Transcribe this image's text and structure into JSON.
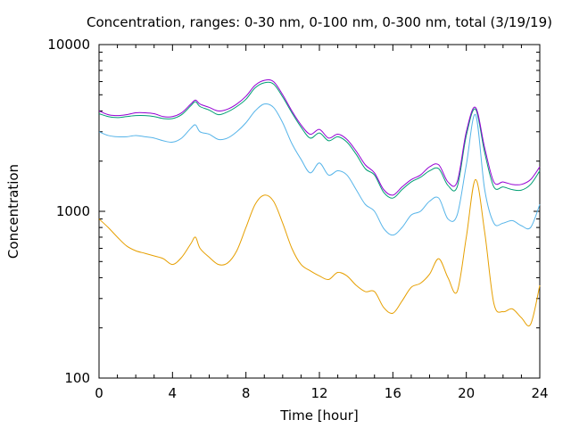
{
  "chart_data": {
    "type": "line",
    "title": "Concentration, ranges: 0-30 nm, 0-100 nm, 0-300 nm, total (3/19/19)",
    "xlabel": "Time [hour]",
    "ylabel": "Concentration",
    "xlim": [
      0,
      24
    ],
    "ylim": [
      100,
      10000
    ],
    "yscale": "log",
    "xticks": [
      0,
      4,
      8,
      12,
      16,
      20,
      24
    ],
    "xtick_labels": [
      "0",
      "4",
      "8",
      "12",
      "16",
      "20",
      "24"
    ],
    "yticks": [
      100,
      1000,
      10000
    ],
    "ytick_labels": [
      "100",
      "1000",
      "10000"
    ],
    "grid": false,
    "legend": "none",
    "x": [
      0,
      0.5,
      1,
      1.5,
      2,
      2.5,
      3,
      3.5,
      4,
      4.5,
      5,
      5.25,
      5.5,
      6,
      6.5,
      7,
      7.5,
      8,
      8.5,
      9,
      9.5,
      10,
      10.5,
      11,
      11.5,
      12,
      12.5,
      13,
      13.5,
      14,
      14.5,
      15,
      15.5,
      16,
      16.5,
      17,
      17.5,
      18,
      18.5,
      19,
      19.5,
      20,
      20.5,
      21,
      21.5,
      22,
      22.5,
      23,
      23.5,
      24
    ],
    "series": [
      {
        "color": "#9400d3",
        "values": [
          4000,
          3800,
          3750,
          3800,
          3900,
          3900,
          3850,
          3700,
          3700,
          3900,
          4400,
          4650,
          4400,
          4200,
          4000,
          4100,
          4400,
          4900,
          5700,
          6100,
          6000,
          5000,
          4000,
          3300,
          2900,
          3100,
          2750,
          2900,
          2700,
          2300,
          1900,
          1700,
          1350,
          1250,
          1400,
          1550,
          1650,
          1850,
          1900,
          1500,
          1500,
          3000,
          4200,
          2400,
          1500,
          1500,
          1450,
          1450,
          1550,
          1850
        ]
      },
      {
        "color": "#009e73",
        "values": [
          3850,
          3700,
          3650,
          3700,
          3750,
          3750,
          3700,
          3600,
          3600,
          3800,
          4300,
          4550,
          4250,
          4050,
          3800,
          3950,
          4250,
          4700,
          5500,
          5900,
          5800,
          4850,
          3900,
          3200,
          2750,
          2950,
          2650,
          2800,
          2600,
          2200,
          1800,
          1650,
          1300,
          1200,
          1350,
          1500,
          1600,
          1750,
          1800,
          1430,
          1400,
          2850,
          4100,
          2250,
          1400,
          1400,
          1350,
          1340,
          1450,
          1750
        ]
      },
      {
        "color": "#56b4e9",
        "values": [
          3000,
          2850,
          2800,
          2800,
          2850,
          2800,
          2750,
          2650,
          2600,
          2750,
          3150,
          3300,
          3000,
          2900,
          2700,
          2750,
          3000,
          3400,
          4000,
          4400,
          4200,
          3400,
          2550,
          2050,
          1700,
          1950,
          1650,
          1750,
          1650,
          1350,
          1100,
          1000,
          790,
          720,
          800,
          950,
          1000,
          1150,
          1200,
          900,
          950,
          1900,
          3800,
          1350,
          850,
          850,
          880,
          820,
          800,
          1100
        ]
      },
      {
        "color": "#e69f00",
        "values": [
          900,
          800,
          700,
          620,
          580,
          560,
          540,
          520,
          480,
          530,
          640,
          700,
          600,
          530,
          480,
          490,
          580,
          800,
          1100,
          1250,
          1150,
          850,
          600,
          480,
          440,
          410,
          390,
          430,
          410,
          360,
          330,
          330,
          265,
          245,
          290,
          350,
          370,
          420,
          520,
          400,
          330,
          700,
          1550,
          750,
          280,
          250,
          260,
          230,
          210,
          360
        ]
      }
    ]
  }
}
